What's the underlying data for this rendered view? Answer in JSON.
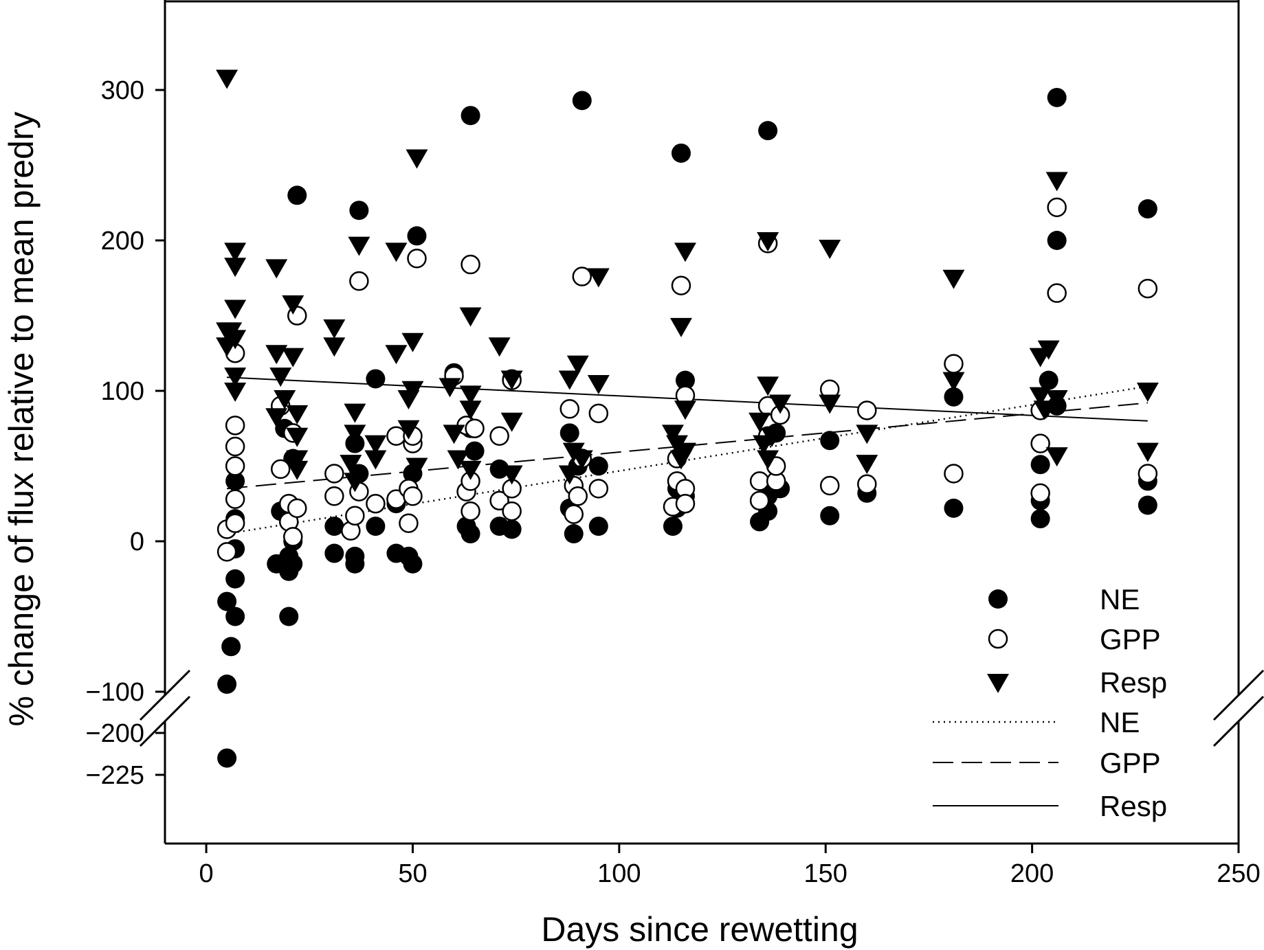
{
  "chart_data": {
    "type": "scatter",
    "title": "",
    "xlabel": "Days since rewetting",
    "ylabel": "% change of flux relative to mean predry",
    "xlim": [
      -10,
      250
    ],
    "x_ticks": [
      "0",
      "50",
      "100",
      "150",
      "200",
      "250"
    ],
    "y_ticks": [
      "300",
      "200",
      "100",
      "0",
      "−100",
      "−200",
      "−225"
    ],
    "y_axis_break": {
      "between": [
        -200,
        -100
      ]
    },
    "grid": false,
    "legend_position": "bottom-right",
    "legend": [
      {
        "label": "NE",
        "kind": "marker",
        "marker": "filled-circle"
      },
      {
        "label": "GPP",
        "kind": "marker",
        "marker": "open-circle"
      },
      {
        "label": "Resp",
        "kind": "marker",
        "marker": "filled-triangle-down"
      },
      {
        "label": "NE",
        "kind": "line",
        "dash": "dotted"
      },
      {
        "label": "GPP",
        "kind": "line",
        "dash": "dashed"
      },
      {
        "label": "Resp",
        "kind": "line",
        "dash": "solid"
      }
    ],
    "series": [
      {
        "name": "NE",
        "marker": "filled-circle",
        "points": [
          [
            5,
            -40
          ],
          [
            5,
            -95
          ],
          [
            5,
            -215
          ],
          [
            6,
            -70
          ],
          [
            7,
            -50
          ],
          [
            7,
            -25
          ],
          [
            7,
            -5
          ],
          [
            7,
            15
          ],
          [
            7,
            40
          ],
          [
            17,
            -15
          ],
          [
            18,
            20
          ],
          [
            20,
            -10
          ],
          [
            20,
            -50
          ],
          [
            20,
            -20
          ],
          [
            21,
            -15
          ],
          [
            21,
            0
          ],
          [
            22,
            230
          ],
          [
            19,
            75
          ],
          [
            21,
            55
          ],
          [
            31,
            10
          ],
          [
            31,
            -8
          ],
          [
            36,
            -15
          ],
          [
            36,
            -10
          ],
          [
            37,
            220
          ],
          [
            36,
            65
          ],
          [
            37,
            45
          ],
          [
            41,
            10
          ],
          [
            41,
            108
          ],
          [
            46,
            -8
          ],
          [
            49,
            -10
          ],
          [
            50,
            -15
          ],
          [
            51,
            203
          ],
          [
            46,
            25
          ],
          [
            50,
            45
          ],
          [
            60,
            112
          ],
          [
            63,
            10
          ],
          [
            64,
            5
          ],
          [
            64,
            283
          ],
          [
            65,
            60
          ],
          [
            64,
            75
          ],
          [
            71,
            48
          ],
          [
            71,
            10
          ],
          [
            74,
            8
          ],
          [
            74,
            108
          ],
          [
            88,
            72
          ],
          [
            88,
            22
          ],
          [
            89,
            5
          ],
          [
            91,
            293
          ],
          [
            90,
            50
          ],
          [
            95,
            10
          ],
          [
            95,
            50
          ],
          [
            113,
            10
          ],
          [
            114,
            22
          ],
          [
            115,
            258
          ],
          [
            116,
            107
          ],
          [
            116,
            30
          ],
          [
            114,
            35
          ],
          [
            134,
            13
          ],
          [
            136,
            20
          ],
          [
            136,
            273
          ],
          [
            136,
            30
          ],
          [
            138,
            72
          ],
          [
            138,
            35
          ],
          [
            139,
            35
          ],
          [
            151,
            17
          ],
          [
            151,
            67
          ],
          [
            160,
            32
          ],
          [
            181,
            22
          ],
          [
            181,
            96
          ],
          [
            202,
            15
          ],
          [
            202,
            51
          ],
          [
            202,
            27
          ],
          [
            204,
            107
          ],
          [
            206,
            200
          ],
          [
            206,
            295
          ],
          [
            206,
            90
          ],
          [
            228,
            221
          ],
          [
            228,
            24
          ],
          [
            228,
            40
          ]
        ]
      },
      {
        "name": "GPP",
        "marker": "open-circle",
        "points": [
          [
            5,
            8
          ],
          [
            5,
            -7
          ],
          [
            7,
            125
          ],
          [
            7,
            77
          ],
          [
            7,
            63
          ],
          [
            7,
            50
          ],
          [
            7,
            28
          ],
          [
            7,
            12
          ],
          [
            18,
            90
          ],
          [
            18,
            48
          ],
          [
            20,
            25
          ],
          [
            20,
            13
          ],
          [
            21,
            3
          ],
          [
            22,
            150
          ],
          [
            21,
            72
          ],
          [
            22,
            22
          ],
          [
            31,
            45
          ],
          [
            31,
            30
          ],
          [
            35,
            7
          ],
          [
            36,
            17
          ],
          [
            37,
            33
          ],
          [
            37,
            173
          ],
          [
            41,
            25
          ],
          [
            46,
            70
          ],
          [
            46,
            28
          ],
          [
            49,
            35
          ],
          [
            49,
            12
          ],
          [
            50,
            65
          ],
          [
            50,
            70
          ],
          [
            50,
            30
          ],
          [
            51,
            188
          ],
          [
            60,
            110
          ],
          [
            63,
            77
          ],
          [
            63,
            33
          ],
          [
            64,
            20
          ],
          [
            64,
            184
          ],
          [
            65,
            75
          ],
          [
            64,
            40
          ],
          [
            71,
            27
          ],
          [
            71,
            70
          ],
          [
            74,
            20
          ],
          [
            74,
            35
          ],
          [
            74,
            107
          ],
          [
            88,
            88
          ],
          [
            89,
            37
          ],
          [
            89,
            18
          ],
          [
            90,
            30
          ],
          [
            91,
            176
          ],
          [
            91,
            55
          ],
          [
            95,
            35
          ],
          [
            95,
            85
          ],
          [
            113,
            23
          ],
          [
            114,
            40
          ],
          [
            114,
            55
          ],
          [
            115,
            170
          ],
          [
            116,
            97
          ],
          [
            116,
            35
          ],
          [
            116,
            25
          ],
          [
            134,
            27
          ],
          [
            134,
            40
          ],
          [
            136,
            70
          ],
          [
            136,
            198
          ],
          [
            136,
            90
          ],
          [
            138,
            40
          ],
          [
            138,
            50
          ],
          [
            139,
            84
          ],
          [
            151,
            101
          ],
          [
            151,
            37
          ],
          [
            160,
            38
          ],
          [
            160,
            87
          ],
          [
            181,
            45
          ],
          [
            181,
            118
          ],
          [
            202,
            32
          ],
          [
            202,
            65
          ],
          [
            202,
            87
          ],
          [
            206,
            222
          ],
          [
            206,
            165
          ],
          [
            228,
            168
          ],
          [
            228,
            45
          ]
        ]
      },
      {
        "name": "Resp",
        "marker": "filled-triangle-down",
        "points": [
          [
            5,
            308
          ],
          [
            5,
            140
          ],
          [
            5,
            130
          ],
          [
            6,
            140
          ],
          [
            7,
            193
          ],
          [
            7,
            183
          ],
          [
            7,
            155
          ],
          [
            7,
            135
          ],
          [
            7,
            110
          ],
          [
            7,
            100
          ],
          [
            17,
            182
          ],
          [
            17,
            125
          ],
          [
            17,
            83
          ],
          [
            18,
            110
          ],
          [
            19,
            95
          ],
          [
            21,
            158
          ],
          [
            21,
            123
          ],
          [
            22,
            85
          ],
          [
            22,
            70
          ],
          [
            22,
            55
          ],
          [
            22,
            48
          ],
          [
            31,
            142
          ],
          [
            31,
            130
          ],
          [
            35,
            52
          ],
          [
            36,
            86
          ],
          [
            36,
            72
          ],
          [
            36,
            40
          ],
          [
            37,
            197
          ],
          [
            41,
            55
          ],
          [
            41,
            65
          ],
          [
            46,
            193
          ],
          [
            46,
            125
          ],
          [
            49,
            95
          ],
          [
            49,
            75
          ],
          [
            50,
            133
          ],
          [
            50,
            101
          ],
          [
            51,
            255
          ],
          [
            51,
            50
          ],
          [
            59,
            103
          ],
          [
            60,
            72
          ],
          [
            61,
            55
          ],
          [
            64,
            150
          ],
          [
            64,
            98
          ],
          [
            64,
            88
          ],
          [
            64,
            48
          ],
          [
            71,
            130
          ],
          [
            74,
            108
          ],
          [
            74,
            80
          ],
          [
            74,
            45
          ],
          [
            88,
            108
          ],
          [
            88,
            45
          ],
          [
            89,
            60
          ],
          [
            90,
            118
          ],
          [
            91,
            55
          ],
          [
            95,
            176
          ],
          [
            95,
            105
          ],
          [
            113,
            72
          ],
          [
            114,
            65
          ],
          [
            115,
            143
          ],
          [
            115,
            55
          ],
          [
            116,
            193
          ],
          [
            116,
            88
          ],
          [
            116,
            60
          ],
          [
            134,
            80
          ],
          [
            135,
            65
          ],
          [
            136,
            200
          ],
          [
            136,
            104
          ],
          [
            136,
            55
          ],
          [
            137,
            70
          ],
          [
            139,
            92
          ],
          [
            151,
            195
          ],
          [
            151,
            92
          ],
          [
            160,
            72
          ],
          [
            160,
            52
          ],
          [
            181,
            175
          ],
          [
            181,
            107
          ],
          [
            202,
            123
          ],
          [
            202,
            97
          ],
          [
            203,
            88
          ],
          [
            204,
            128
          ],
          [
            206,
            240
          ],
          [
            206,
            95
          ],
          [
            206,
            57
          ],
          [
            228,
            100
          ],
          [
            228,
            60
          ]
        ]
      }
    ],
    "regression_lines": [
      {
        "name": "NE",
        "dash": "dotted",
        "x": [
          5,
          228
        ],
        "y": [
          5,
          103
        ]
      },
      {
        "name": "GPP",
        "dash": "dashed",
        "x": [
          5,
          228
        ],
        "y": [
          35,
          92
        ]
      },
      {
        "name": "Resp",
        "dash": "solid",
        "x": [
          5,
          228
        ],
        "y": [
          109,
          80
        ]
      }
    ]
  }
}
